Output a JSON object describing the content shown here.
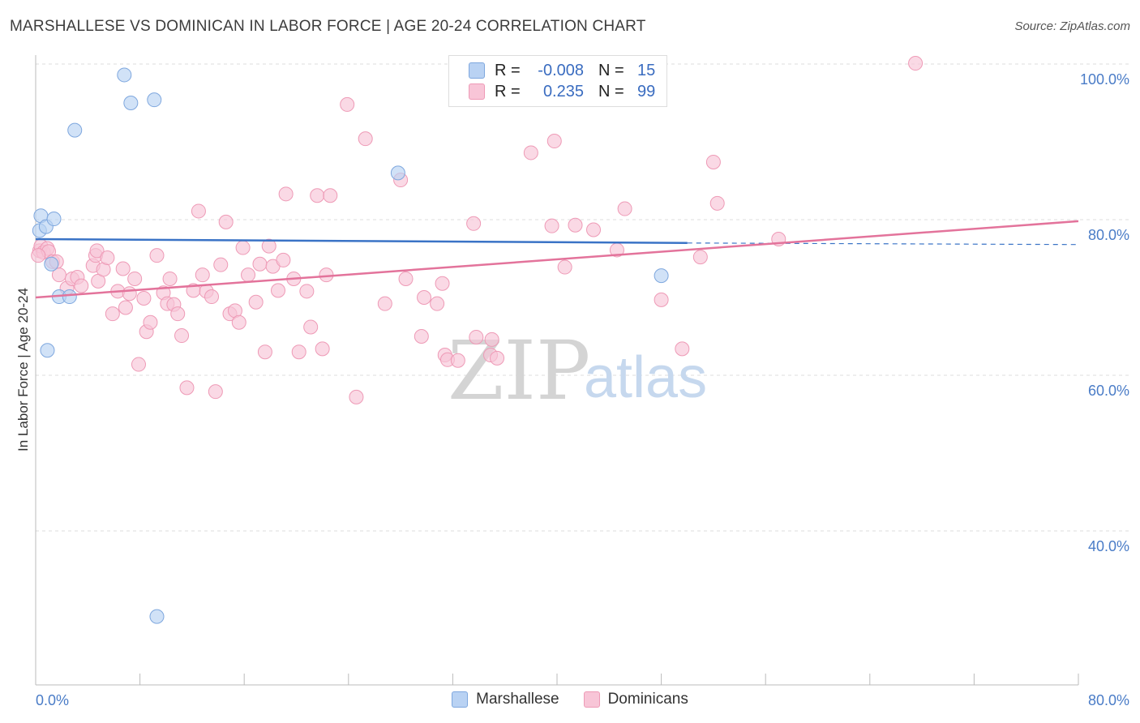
{
  "title": "MARSHALLESE VS DOMINICAN IN LABOR FORCE | AGE 20-24 CORRELATION CHART",
  "source": "Source: ZipAtlas.com",
  "watermark": {
    "zip": "ZIP",
    "atlas": "atlas"
  },
  "legend": {
    "rows": [
      {
        "r_label": "R =",
        "r_value": "-0.008",
        "n_label": "N =",
        "n_value": "15"
      },
      {
        "r_label": "R =",
        "r_value": "0.235",
        "n_label": "N =",
        "n_value": "99"
      }
    ]
  },
  "bottom_legend": [
    "Marshallese",
    "Dominicans"
  ],
  "colors": {
    "marshallese_fill": "#b9d2f3",
    "marshallese_stroke": "#7ea7de",
    "marshallese_line": "#3a73c6",
    "dominicans_fill": "#f8c5d7",
    "dominicans_stroke": "#ee9ab6",
    "dominicans_line": "#e3739b",
    "axis_text": "#4a7cc7",
    "grid": "#dddddd"
  },
  "chart_data": {
    "type": "scatter",
    "title": "MARSHALLESE VS DOMINICAN IN LABOR FORCE | AGE 20-24 CORRELATION CHART",
    "xlabel": "",
    "ylabel": "In Labor Force | Age 20-24",
    "xlim": [
      0,
      80
    ],
    "ylim": [
      20,
      104
    ],
    "x_tick_labels": [
      "0.0%",
      "80.0%"
    ],
    "y_ticks": [
      40,
      60,
      80,
      100
    ],
    "y_tick_labels": [
      "40.0%",
      "60.0%",
      "80.0%",
      "100.0%"
    ],
    "grid": true,
    "series": [
      {
        "name": "Marshallese",
        "r": -0.008,
        "n": 15,
        "trend": {
          "x0": 0,
          "y0": 77.5,
          "x1": 50,
          "y1": 77.0,
          "dash_to_x": 80,
          "dash_y1": 76.8
        },
        "points": [
          [
            0.3,
            78.6
          ],
          [
            0.4,
            80.5
          ],
          [
            0.8,
            79.1
          ],
          [
            1.4,
            80.1
          ],
          [
            0.9,
            63.2
          ],
          [
            1.2,
            74.3
          ],
          [
            1.8,
            70.1
          ],
          [
            2.6,
            70.1
          ],
          [
            3.0,
            91.5
          ],
          [
            6.8,
            98.6
          ],
          [
            7.3,
            95.0
          ],
          [
            9.1,
            95.4
          ],
          [
            9.3,
            29.0
          ],
          [
            27.8,
            86.0
          ],
          [
            48.0,
            72.8
          ]
        ]
      },
      {
        "name": "Dominicans",
        "r": 0.235,
        "n": 99,
        "trend": {
          "x0": 0,
          "y0": 70.0,
          "x1": 80,
          "y1": 79.8
        },
        "points": [
          [
            0.3,
            76.0
          ],
          [
            0.4,
            76.6
          ],
          [
            0.6,
            75.8
          ],
          [
            0.9,
            76.3
          ],
          [
            1.0,
            75.9
          ],
          [
            1.3,
            74.6
          ],
          [
            1.6,
            74.6
          ],
          [
            1.8,
            72.9
          ],
          [
            2.4,
            71.2
          ],
          [
            2.8,
            72.4
          ],
          [
            3.2,
            72.6
          ],
          [
            3.5,
            71.5
          ],
          [
            4.4,
            74.1
          ],
          [
            4.6,
            75.4
          ],
          [
            4.7,
            76.0
          ],
          [
            4.8,
            72.1
          ],
          [
            5.2,
            73.6
          ],
          [
            5.5,
            75.1
          ],
          [
            5.9,
            67.9
          ],
          [
            6.3,
            70.8
          ],
          [
            6.7,
            73.7
          ],
          [
            6.9,
            68.7
          ],
          [
            7.2,
            70.5
          ],
          [
            7.6,
            72.4
          ],
          [
            7.9,
            61.4
          ],
          [
            8.3,
            69.9
          ],
          [
            8.5,
            65.6
          ],
          [
            8.8,
            66.8
          ],
          [
            9.3,
            75.4
          ],
          [
            9.8,
            70.6
          ],
          [
            10.1,
            69.2
          ],
          [
            10.3,
            72.4
          ],
          [
            10.6,
            69.1
          ],
          [
            10.9,
            67.9
          ],
          [
            11.2,
            65.1
          ],
          [
            11.6,
            58.4
          ],
          [
            12.1,
            70.9
          ],
          [
            12.5,
            81.1
          ],
          [
            12.8,
            72.9
          ],
          [
            13.1,
            70.8
          ],
          [
            13.5,
            70.1
          ],
          [
            13.8,
            57.9
          ],
          [
            14.2,
            74.2
          ],
          [
            14.6,
            79.7
          ],
          [
            14.9,
            67.9
          ],
          [
            15.3,
            68.3
          ],
          [
            15.6,
            66.8
          ],
          [
            15.9,
            76.4
          ],
          [
            16.3,
            72.9
          ],
          [
            16.9,
            69.4
          ],
          [
            17.2,
            74.3
          ],
          [
            17.6,
            63.0
          ],
          [
            17.9,
            76.6
          ],
          [
            18.2,
            74.0
          ],
          [
            18.6,
            70.9
          ],
          [
            19.0,
            74.8
          ],
          [
            19.2,
            83.3
          ],
          [
            19.8,
            72.4
          ],
          [
            20.2,
            63.0
          ],
          [
            20.8,
            70.8
          ],
          [
            21.1,
            66.2
          ],
          [
            21.6,
            83.1
          ],
          [
            22.0,
            63.4
          ],
          [
            22.3,
            72.9
          ],
          [
            22.6,
            83.1
          ],
          [
            23.9,
            94.8
          ],
          [
            24.6,
            57.2
          ],
          [
            25.3,
            90.4
          ],
          [
            26.8,
            69.2
          ],
          [
            28.0,
            85.1
          ],
          [
            28.4,
            72.4
          ],
          [
            29.6,
            65.0
          ],
          [
            29.8,
            70.0
          ],
          [
            30.8,
            69.2
          ],
          [
            31.2,
            71.8
          ],
          [
            31.4,
            62.6
          ],
          [
            31.6,
            62.0
          ],
          [
            32.4,
            61.9
          ],
          [
            33.6,
            79.5
          ],
          [
            33.8,
            64.9
          ],
          [
            34.9,
            62.6
          ],
          [
            35.0,
            64.6
          ],
          [
            35.4,
            62.2
          ],
          [
            38.0,
            88.6
          ],
          [
            39.6,
            79.2
          ],
          [
            39.8,
            90.1
          ],
          [
            40.6,
            73.9
          ],
          [
            41.4,
            79.3
          ],
          [
            42.8,
            78.7
          ],
          [
            44.6,
            76.1
          ],
          [
            45.2,
            81.4
          ],
          [
            48.0,
            69.7
          ],
          [
            49.6,
            63.4
          ],
          [
            51.0,
            75.2
          ],
          [
            52.0,
            87.4
          ],
          [
            52.3,
            82.1
          ],
          [
            57.0,
            77.5
          ],
          [
            67.5,
            100.1
          ],
          [
            0.2,
            75.4
          ]
        ]
      }
    ]
  }
}
